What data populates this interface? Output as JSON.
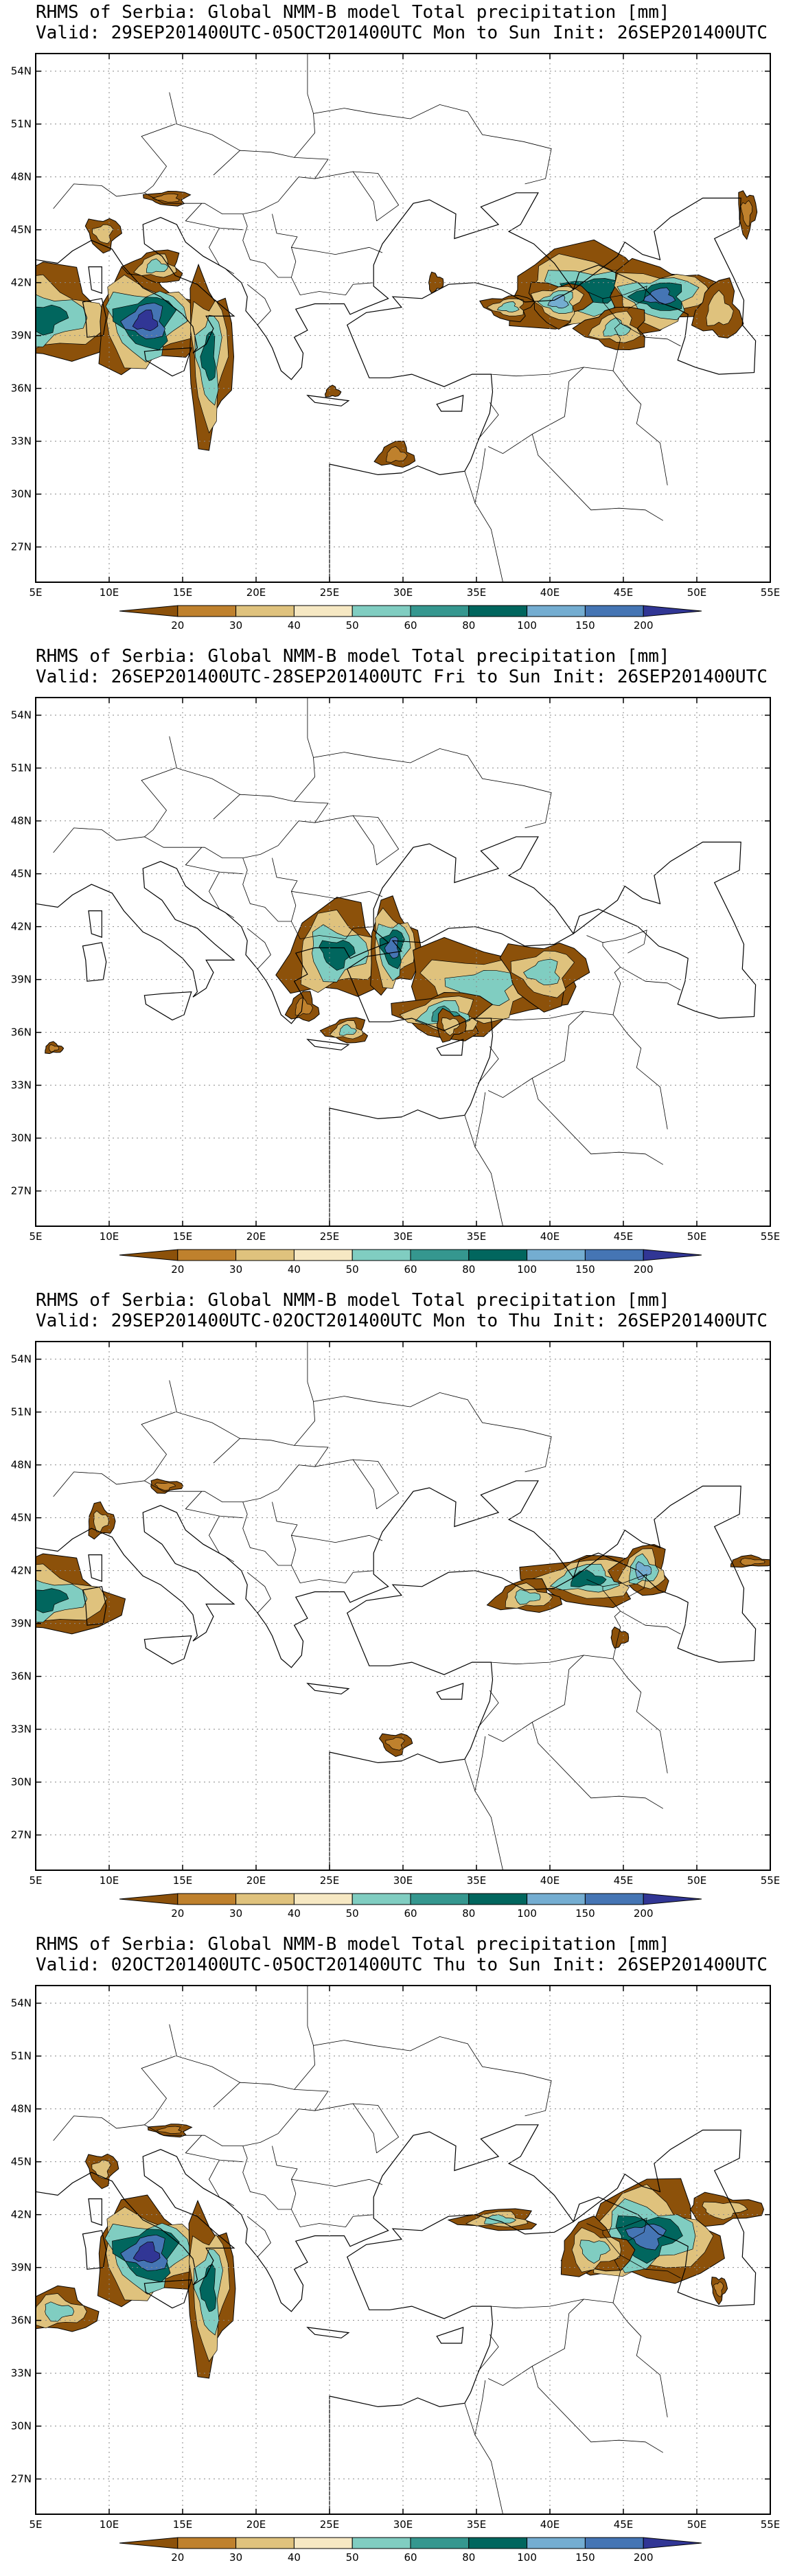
{
  "map": {
    "lon_range": [
      5,
      55
    ],
    "lat_range": [
      25,
      55
    ],
    "lon_ticks": [
      "5E",
      "10E",
      "15E",
      "20E",
      "25E",
      "30E",
      "35E",
      "40E",
      "45E",
      "50E",
      "55E"
    ],
    "lat_ticks": [
      "54N",
      "51N",
      "48N",
      "45N",
      "42N",
      "39N",
      "36N",
      "33N",
      "30N",
      "27N"
    ],
    "grid": "dotted"
  },
  "legend": {
    "labels": [
      "20",
      "30",
      "40",
      "50",
      "60",
      "80",
      "100",
      "150",
      "200"
    ],
    "colors": [
      "#8c510a",
      "#bf812d",
      "#dfc27d",
      "#f6e8c3",
      "#80cdc1",
      "#35978f",
      "#01665e",
      "#74add1",
      "#4575b4",
      "#313695"
    ]
  },
  "panels": [
    {
      "title": "RHMS of Serbia: Global NMM-B model Total precipitation [mm]",
      "valid": "Valid: 29SEP201400UTC-05OCT201400UTC Mon to Sun",
      "init": "Init: 26SEP201400UTC"
    },
    {
      "title": "RHMS of Serbia: Global NMM-B model Total precipitation [mm]",
      "valid": "Valid: 26SEP201400UTC-28SEP201400UTC Fri to Sun",
      "init": "Init: 26SEP201400UTC"
    },
    {
      "title": "RHMS of Serbia: Global NMM-B model Total precipitation [mm]",
      "valid": "Valid: 29SEP201400UTC-02OCT201400UTC Mon to Thu",
      "init": "Init: 26SEP201400UTC"
    },
    {
      "title": "RHMS of Serbia: Global NMM-B model Total precipitation [mm]",
      "valid": "Valid: 02OCT201400UTC-05OCT201400UTC Thu to Sun",
      "init": "Init: 26SEP201400UTC"
    }
  ]
}
